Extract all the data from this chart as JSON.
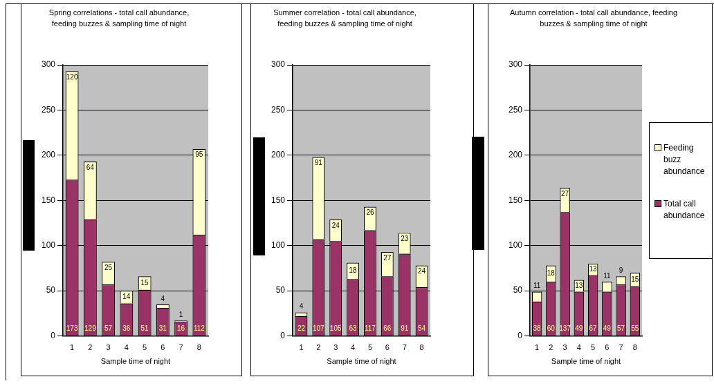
{
  "chart_data": [
    {
      "type": "bar",
      "title": "Spring correlations - total call abundance, feeding buzzes & sampling time of night",
      "xlabel": "Sample time of night",
      "categories": [
        "1",
        "2",
        "3",
        "4",
        "5",
        "6",
        "7",
        "8"
      ],
      "stacked": true,
      "series": [
        {
          "color": "#993366",
          "values": [
            173,
            129,
            57,
            36,
            51,
            31,
            16,
            112
          ]
        },
        {
          "color": "#ffffcc",
          "values": [
            120,
            64,
            25,
            14,
            15,
            4,
            1,
            95
          ]
        }
      ],
      "ylim": [
        0,
        300
      ],
      "yticks": [
        0,
        50,
        100,
        150,
        200,
        250,
        300
      ],
      "grid": "y",
      "data_labels": true,
      "legend": false
    },
    {
      "type": "bar",
      "title": "Summer correlation - total call abundance, feeding buzzes & sampling time of night",
      "xlabel": "Sample time of night",
      "categories": [
        "1",
        "2",
        "3",
        "4",
        "5",
        "6",
        "7",
        "8"
      ],
      "stacked": true,
      "series": [
        {
          "color": "#993366",
          "values": [
            22,
            107,
            105,
            63,
            117,
            66,
            91,
            54
          ]
        },
        {
          "color": "#ffffcc",
          "values": [
            4,
            91,
            24,
            18,
            26,
            27,
            23,
            24
          ]
        }
      ],
      "ylim": [
        0,
        300
      ],
      "yticks": [
        0,
        50,
        100,
        150,
        200,
        250,
        300
      ],
      "grid": "y",
      "data_labels": true,
      "legend": false
    },
    {
      "type": "bar",
      "title": "Autumn correlation - total call abundance, feeding buzzes & sampling time of night",
      "xlabel": "Sample time of night",
      "categories": [
        "1",
        "2",
        "3",
        "4",
        "5",
        "6",
        "7",
        "8"
      ],
      "stacked": true,
      "series": [
        {
          "name": "Total call abundance",
          "color": "#993366",
          "values": [
            38,
            60,
            137,
            49,
            67,
            49,
            57,
            55
          ]
        },
        {
          "name": "Feeding buzz abundance",
          "color": "#ffffcc",
          "values": [
            11,
            18,
            27,
            13,
            13,
            11,
            9,
            15
          ]
        }
      ],
      "ylim": [
        0,
        300
      ],
      "yticks": [
        0,
        50,
        100,
        150,
        200,
        250,
        300
      ],
      "grid": "y",
      "data_labels": true,
      "legend": "right"
    }
  ]
}
